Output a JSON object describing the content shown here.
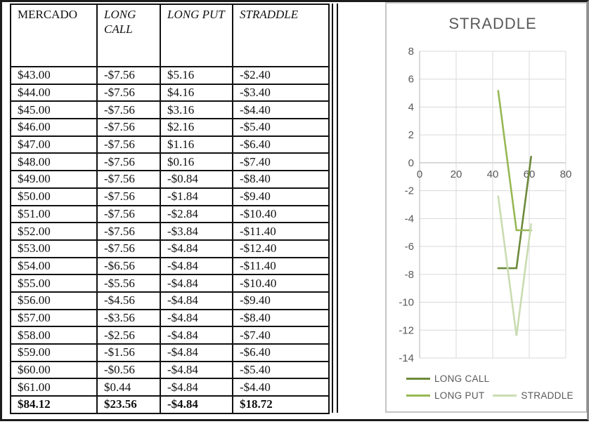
{
  "table": {
    "columns": [
      "MERCADO",
      "LONG CALL",
      "LONG PUT",
      "STRADDLE"
    ],
    "rows": [
      [
        "$43.00",
        "-$7.56",
        "$5.16",
        "-$2.40"
      ],
      [
        "$44.00",
        "-$7.56",
        "$4.16",
        "-$3.40"
      ],
      [
        "$45.00",
        "-$7.56",
        "$3.16",
        "-$4.40"
      ],
      [
        "$46.00",
        "-$7.56",
        "$2.16",
        "-$5.40"
      ],
      [
        "$47.00",
        "-$7.56",
        "$1.16",
        "-$6.40"
      ],
      [
        "$48.00",
        "-$7.56",
        "$0.16",
        "-$7.40"
      ],
      [
        "$49.00",
        "-$7.56",
        "-$0.84",
        "-$8.40"
      ],
      [
        "$50.00",
        "-$7.56",
        "-$1.84",
        "-$9.40"
      ],
      [
        "$51.00",
        "-$7.56",
        "-$2.84",
        "-$10.40"
      ],
      [
        "$52.00",
        "-$7.56",
        "-$3.84",
        "-$11.40"
      ],
      [
        "$53.00",
        "-$7.56",
        "-$4.84",
        "-$12.40"
      ],
      [
        "$54.00",
        "-$6.56",
        "-$4.84",
        "-$11.40"
      ],
      [
        "$55.00",
        "-$5.56",
        "-$4.84",
        "-$10.40"
      ],
      [
        "$56.00",
        "-$4.56",
        "-$4.84",
        "-$9.40"
      ],
      [
        "$57.00",
        "-$3.56",
        "-$4.84",
        "-$8.40"
      ],
      [
        "$58.00",
        "-$2.56",
        "-$4.84",
        "-$7.40"
      ],
      [
        "$59.00",
        "-$1.56",
        "-$4.84",
        "-$6.40"
      ],
      [
        "$60.00",
        "-$0.56",
        "-$4.84",
        "-$5.40"
      ],
      [
        "$61.00",
        "$0.44",
        "-$4.84",
        "-$4.40"
      ]
    ],
    "totals_row": [
      "$84.12",
      "$23.56",
      "-$4.84",
      "$18.72"
    ]
  },
  "chart_data": {
    "type": "line",
    "title": "STRADDLE",
    "x": [
      43,
      44,
      45,
      46,
      47,
      48,
      49,
      50,
      51,
      52,
      53,
      54,
      55,
      56,
      57,
      58,
      59,
      60,
      61
    ],
    "series": [
      {
        "name": "LONG CALL",
        "color": "#6d8a3c",
        "values": [
          -7.56,
          -7.56,
          -7.56,
          -7.56,
          -7.56,
          -7.56,
          -7.56,
          -7.56,
          -7.56,
          -7.56,
          -7.56,
          -6.56,
          -5.56,
          -4.56,
          -3.56,
          -2.56,
          -1.56,
          -0.56,
          0.44
        ]
      },
      {
        "name": "LONG PUT",
        "color": "#97b854",
        "values": [
          5.16,
          4.16,
          3.16,
          2.16,
          1.16,
          0.16,
          -0.84,
          -1.84,
          -2.84,
          -3.84,
          -4.84,
          -4.84,
          -4.84,
          -4.84,
          -4.84,
          -4.84,
          -4.84,
          -4.84,
          -4.84
        ]
      },
      {
        "name": "STRADDLE",
        "color": "#cadcb2",
        "values": [
          -2.4,
          -3.4,
          -4.4,
          -5.4,
          -6.4,
          -7.4,
          -8.4,
          -9.4,
          -10.4,
          -11.4,
          -12.4,
          -11.4,
          -10.4,
          -9.4,
          -8.4,
          -7.4,
          -6.4,
          -5.4,
          -4.4
        ]
      }
    ],
    "xlim": [
      0,
      80
    ],
    "ylim": [
      -14,
      8
    ],
    "x_ticks": [
      0,
      20,
      40,
      60,
      80
    ],
    "y_tick_step": 2,
    "grid": true,
    "legend_position": "bottom",
    "xlabel": "",
    "ylabel": ""
  },
  "colors": {
    "grid": "#d9d9d9",
    "axis": "#b3b3b3",
    "tick_label": "#595959",
    "title": "#5a5a5a",
    "table_border": "#111111",
    "panel_border": "#c4c4c4"
  }
}
